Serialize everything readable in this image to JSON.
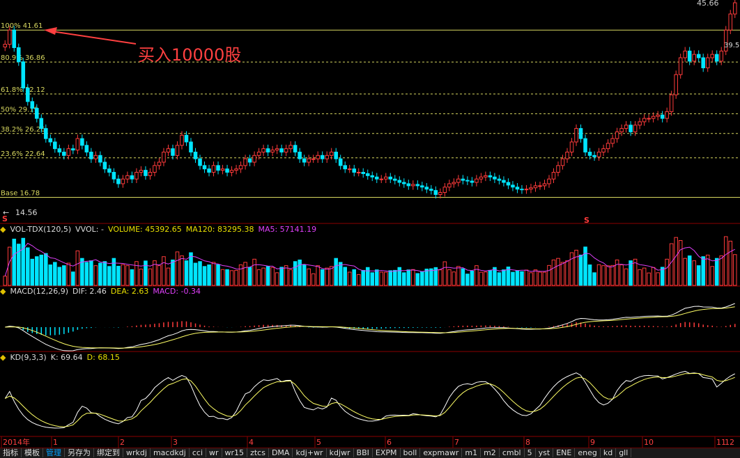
{
  "colors": {
    "bg": "#000000",
    "up": "#ff3b3b",
    "down": "#00e5ff",
    "grid": "#8b0000",
    "fib": "#d8d860",
    "ma_vol": "#e040fb",
    "dif": "#ffffff",
    "dea": "#ffff66",
    "k": "#ffffff",
    "d": "#ffff66",
    "annot": "#ff4040"
  },
  "price": {
    "high_label": "45.66",
    "right_label": "39.5",
    "low_label": "14.56",
    "fib_levels": [
      {
        "label": "100% 41.61",
        "value": 41.61
      },
      {
        "label": "80.9% 36.86",
        "value": 36.86
      },
      {
        "label": "61.8% 32.12",
        "value": 32.12
      },
      {
        "label": "50% 29.19",
        "value": 29.19
      },
      {
        "label": "38.2% 26.26",
        "value": 26.26
      },
      {
        "label": "23.6% 22.64",
        "value": 22.64
      },
      {
        "label": "Base 16.78",
        "value": 16.78
      }
    ],
    "annotation": "买入10000股",
    "signal_marks": [
      "S",
      "S"
    ]
  },
  "vol_header": {
    "name": "VOL-TDX(120,5)",
    "vvol": "VVOL: -",
    "volume": "VOLUME: 45392.65",
    "ma120": "MA120: 83295.38",
    "ma5": "MA5: 57141.19"
  },
  "macd_header": {
    "name": "MACD(12,26,9)",
    "dif": "DIF: 2.46",
    "dea": "DEA: 2.63",
    "macd": "MACD: -0.34"
  },
  "kd_header": {
    "name": "KD(9,3,3)",
    "k": "K: 69.64",
    "d": "D: 68.15"
  },
  "time_axis": [
    "2014年",
    "1",
    "2",
    "3",
    "4",
    "5",
    "6",
    "7",
    "8",
    "9",
    "10",
    "11",
    "12"
  ],
  "tabs": [
    "指标",
    "模板",
    "管理",
    "另存为",
    "绑定到",
    "wrkdj",
    "macdkdj",
    "cci",
    "wr",
    "wr15",
    "ztcs",
    "DMA",
    "kdj+wr",
    "kdjwr",
    "BBI",
    "EXPM",
    "boll",
    "expmawr",
    "m1",
    "m2",
    "cmbl",
    "5",
    "yst",
    "ENE",
    "eneg",
    "kd",
    "gll"
  ],
  "active_tab": "管理",
  "chart_data": {
    "type": "candlestick",
    "ylim": [
      14.56,
      45.66
    ],
    "series": [
      {
        "name": "close",
        "values": [
          39.5,
          41.61,
          39.0,
          36.9,
          33.0,
          31.0,
          30.0,
          28.5,
          27.0,
          25.5,
          25.0,
          24.0,
          23.5,
          23.0,
          24.0,
          23.8,
          25.5,
          24.5,
          23.5,
          22.5,
          23.0,
          22.0,
          21.0,
          20.5,
          19.5,
          18.8,
          19.5,
          20.0,
          19.5,
          20.5,
          20.8,
          20.0,
          20.5,
          21.5,
          22.0,
          23.5,
          24.0,
          23.0,
          24.5,
          26.0,
          25.0,
          23.5,
          22.5,
          21.5,
          21.0,
          20.5,
          21.5,
          20.8,
          21.0,
          20.5,
          20.8,
          21.0,
          21.5,
          22.5,
          22.0,
          23.0,
          23.5,
          24.0,
          23.5,
          23.8,
          24.0,
          23.5,
          24.0,
          24.5,
          23.5,
          22.5,
          22.0,
          22.5,
          22.5,
          23.0,
          22.5,
          23.0,
          23.5,
          22.5,
          21.5,
          21.0,
          21.0,
          20.5,
          20.5,
          20.3,
          20.0,
          19.8,
          19.5,
          19.5,
          19.8,
          19.5,
          19.3,
          19.0,
          18.8,
          18.5,
          18.7,
          18.5,
          18.3,
          18.0,
          17.8,
          17.2,
          17.5,
          18.3,
          18.8,
          19.0,
          19.5,
          19.3,
          19.2,
          19.0,
          19.5,
          19.8,
          20.0,
          19.8,
          19.5,
          19.3,
          19.0,
          18.6,
          18.3,
          18.0,
          17.9,
          18.0,
          18.2,
          18.5,
          18.5,
          18.8,
          19.5,
          20.5,
          21.5,
          22.5,
          23.5,
          25.0,
          27.0,
          25.5,
          23.5,
          23.0,
          22.8,
          23.5,
          24.0,
          24.8,
          25.5,
          26.5,
          27.0,
          27.5,
          26.5,
          27.5,
          28.0,
          28.5,
          28.5,
          28.8,
          29.0,
          28.5,
          29.5,
          32.0,
          35.0,
          37.5,
          38.5,
          37.0,
          38.0,
          37.5,
          36.0,
          37.5,
          38.0,
          37.0,
          38.5,
          41.61,
          44.0,
          45.66
        ]
      }
    ],
    "volume": {
      "volume": 45392.65,
      "ma120": 83295.38,
      "ma5": 57141.19
    },
    "macd": {
      "dif": 2.46,
      "dea": 2.63,
      "macd": -0.34
    },
    "kd": {
      "k": 69.64,
      "d": 68.15
    }
  }
}
